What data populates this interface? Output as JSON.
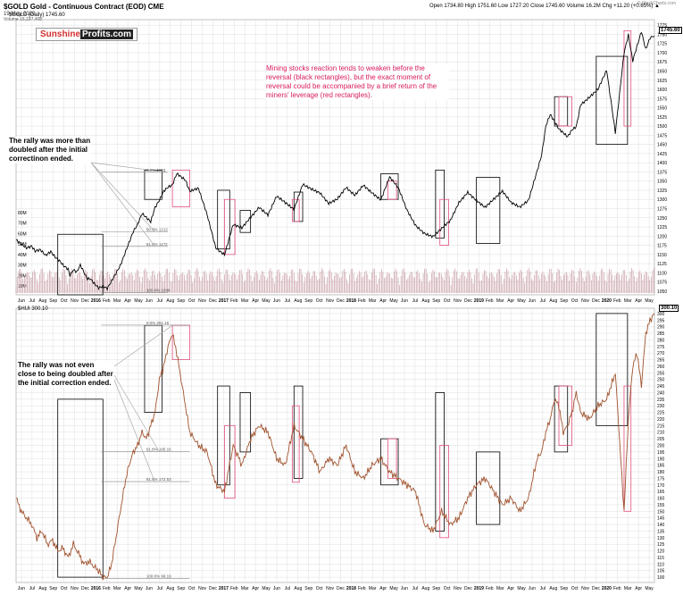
{
  "header": {
    "symbol_line": "$GOLD Gold - Continuous Contract (EOD) CME",
    "date": "19-May-2020",
    "legend_line": "$GOLD (Daily) 1745.60",
    "volume_line": "Volume 16,197,408",
    "credit": "© StockCharts.com",
    "stats": "Open 1734.80  High 1751.60  Low 1727.20  Close 1745.60  Volume 16.2M  Chg +11.20 (+0.65%) ▲"
  },
  "logo": {
    "part1": "Sunshine",
    "part2": "Profits.com"
  },
  "annotations": {
    "top_red": "Mining stocks reaction tends to weaken before the reversal (black rectangles), but the exact moment of reversal could be accompanied by a brief return of the miners' leverage (red rectangles).",
    "left_gold": "The rally was more than doubled after the initial correctinon ended.",
    "left_hui": "The rally was not even close to being doubled after the initial correction ended."
  },
  "lower_pane_label": "$HUI 300.10",
  "colors": {
    "gold_line": "#000000",
    "hui_line": "#a0522d",
    "volume": "#c9a0a8",
    "black_box": "#000000",
    "red_box": "#e0507a",
    "grid": "#d7d7d7",
    "fib": "#888888"
  },
  "chart_data": [
    {
      "type": "line",
      "title": "$GOLD (Daily) 1745.60",
      "x_ticks": [
        "Jun",
        "Jul",
        "Aug",
        "Sep",
        "Oct",
        "Nov",
        "Dec",
        "2016",
        "Feb",
        "Mar",
        "Apr",
        "May",
        "Jun",
        "Jul",
        "Aug",
        "Sep",
        "Oct",
        "Nov",
        "Dec",
        "2017",
        "Feb",
        "Mar",
        "Apr",
        "May",
        "Jun",
        "Jul",
        "Aug",
        "Sep",
        "Oct",
        "Nov",
        "Dec",
        "2018",
        "Feb",
        "Mar",
        "Apr",
        "May",
        "Jun",
        "Jul",
        "Aug",
        "Sep",
        "Oct",
        "Nov",
        "Dec",
        "2019",
        "Feb",
        "Mar",
        "Apr",
        "May",
        "Jun",
        "Jul",
        "Aug",
        "Sep",
        "Oct",
        "Nov",
        "Dec",
        "2020",
        "Feb",
        "Mar",
        "Apr",
        "May"
      ],
      "y_ticks": [
        1050,
        1075,
        1100,
        1125,
        1150,
        1175,
        1200,
        1225,
        1250,
        1275,
        1300,
        1325,
        1350,
        1375,
        1400,
        1425,
        1450,
        1475,
        1500,
        1525,
        1550,
        1575,
        1600,
        1625,
        1650,
        1675,
        1700,
        1725,
        1750,
        1775
      ],
      "ylim": [
        1040,
        1790
      ],
      "volume_ticks": [
        "10M",
        "20M",
        "30M",
        "40M",
        "50M",
        "60M",
        "70M",
        "80M"
      ],
      "last_value": "1745.60",
      "series": [
        {
          "name": "$GOLD",
          "x": [
            0,
            6,
            12,
            18,
            22,
            28,
            34,
            40,
            45,
            50,
            55,
            60,
            62,
            66,
            70,
            74,
            78,
            80,
            82,
            86,
            90,
            95,
            100,
            105,
            110,
            115,
            120,
            125,
            130,
            135,
            140,
            145,
            150,
            155,
            160,
            165,
            170,
            175,
            180,
            185,
            190,
            195,
            200,
            210,
            220,
            230,
            240,
            250,
            260,
            270,
            280,
            290,
            300,
            310,
            320,
            330,
            340,
            350,
            360,
            370,
            380,
            390,
            400,
            410,
            420,
            430,
            440,
            450,
            460,
            470,
            480,
            490,
            500,
            510,
            520,
            530,
            540,
            550,
            560,
            570,
            580,
            590,
            595,
            600,
            605,
            610,
            615,
            620,
            625,
            630,
            635,
            640,
            645,
            650,
            660,
            670,
            680,
            690,
            700,
            705,
            710,
            715,
            720,
            725,
            730,
            735
          ],
          "y": [
            1190,
            1180,
            1170,
            1175,
            1160,
            1165,
            1150,
            1160,
            1145,
            1135,
            1120,
            1110,
            1095,
            1110,
            1100,
            1120,
            1105,
            1090,
            1085,
            1080,
            1070,
            1060,
            1065,
            1060,
            1080,
            1100,
            1120,
            1150,
            1180,
            1210,
            1230,
            1260,
            1250,
            1240,
            1280,
            1300,
            1325,
            1335,
            1340,
            1370,
            1360,
            1350,
            1320,
            1330,
            1260,
            1170,
            1150,
            1230,
            1220,
            1250,
            1280,
            1260,
            1310,
            1290,
            1270,
            1340,
            1330,
            1320,
            1290,
            1300,
            1330,
            1310,
            1340,
            1320,
            1300,
            1360,
            1330,
            1270,
            1230,
            1210,
            1200,
            1220,
            1240,
            1290,
            1320,
            1300,
            1280,
            1300,
            1320,
            1290,
            1280,
            1300,
            1340,
            1380,
            1420,
            1500,
            1530,
            1510,
            1490,
            1480,
            1470,
            1490,
            1500,
            1560,
            1580,
            1600,
            1650,
            1480,
            1700,
            1750,
            1680,
            1720,
            1760,
            1710,
            1740,
            1745.6
          ]
        }
      ]
    },
    {
      "type": "line",
      "title": "$HUI 300.10",
      "y_ticks": [
        100,
        105,
        110,
        115,
        120,
        125,
        130,
        135,
        140,
        145,
        150,
        155,
        160,
        165,
        170,
        175,
        180,
        185,
        190,
        195,
        200,
        205,
        210,
        215,
        220,
        225,
        230,
        235,
        240,
        245,
        250,
        255,
        260,
        265,
        270,
        275,
        280,
        285,
        290,
        295,
        300
      ],
      "ylim": [
        96,
        304
      ],
      "last_value": "300.10",
      "series": [
        {
          "name": "$HUI",
          "x": [
            0,
            6,
            12,
            18,
            24,
            30,
            36,
            42,
            48,
            54,
            60,
            66,
            72,
            78,
            84,
            90,
            95,
            100,
            105,
            110,
            115,
            120,
            125,
            130,
            135,
            140,
            145,
            150,
            155,
            160,
            165,
            170,
            175,
            180,
            185,
            190,
            195,
            200,
            210,
            220,
            230,
            240,
            250,
            260,
            270,
            280,
            290,
            300,
            310,
            320,
            330,
            340,
            350,
            360,
            370,
            380,
            390,
            400,
            410,
            420,
            430,
            440,
            450,
            460,
            470,
            480,
            490,
            500,
            510,
            520,
            530,
            540,
            550,
            560,
            570,
            580,
            590,
            595,
            600,
            605,
            610,
            615,
            620,
            625,
            630,
            635,
            640,
            645,
            650,
            660,
            670,
            680,
            690,
            700,
            705,
            710,
            715,
            720,
            725,
            730,
            735
          ],
          "y": [
            160,
            150,
            145,
            140,
            130,
            135,
            125,
            128,
            120,
            122,
            115,
            125,
            118,
            110,
            112,
            108,
            105,
            100,
            100,
            110,
            130,
            150,
            170,
            185,
            195,
            200,
            210,
            205,
            215,
            225,
            250,
            260,
            275,
            285,
            270,
            250,
            230,
            210,
            200,
            195,
            170,
            165,
            200,
            185,
            205,
            215,
            210,
            190,
            185,
            215,
            205,
            195,
            180,
            190,
            185,
            200,
            180,
            175,
            185,
            190,
            180,
            175,
            170,
            165,
            140,
            135,
            150,
            140,
            145,
            160,
            170,
            175,
            165,
            155,
            160,
            150,
            160,
            175,
            190,
            195,
            210,
            220,
            235,
            230,
            210,
            215,
            225,
            240,
            225,
            220,
            230,
            235,
            255,
            150,
            220,
            260,
            270,
            245,
            285,
            295,
            300.1
          ]
        }
      ],
      "fib_levels": [
        {
          "label": "0.0% 291.16",
          "value": 291.16
        },
        {
          "label": "61.8% 195.16",
          "value": 195.16
        },
        {
          "label": "61.8% 172.53",
          "value": 172.53
        },
        {
          "label": "100.0% 99.19",
          "value": 99.19
        }
      ]
    }
  ],
  "gold_fib_levels": [
    {
      "label": "0.0% 1374",
      "value": 1374
    },
    {
      "label": "50.0% 1212",
      "value": 1212
    },
    {
      "label": "61.8% 1172",
      "value": 1172
    },
    {
      "label": "100.0% 1046",
      "value": 1046
    }
  ]
}
